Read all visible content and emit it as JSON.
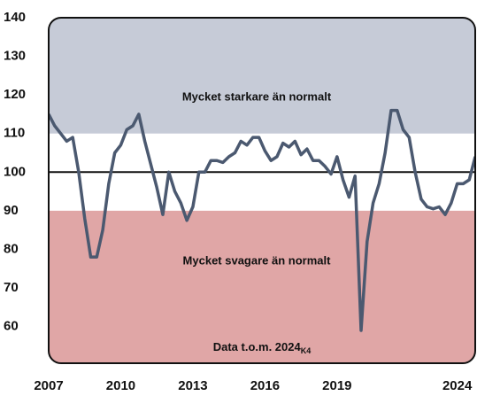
{
  "chart_data": {
    "type": "line",
    "x": [
      2007,
      2007.25,
      2007.5,
      2007.75,
      2008,
      2008.25,
      2008.5,
      2008.75,
      2009,
      2009.25,
      2009.5,
      2009.75,
      2010,
      2010.25,
      2010.5,
      2010.75,
      2011,
      2011.25,
      2011.5,
      2011.75,
      2012,
      2012.25,
      2012.5,
      2012.75,
      2013,
      2013.25,
      2013.5,
      2013.75,
      2014,
      2014.25,
      2014.5,
      2014.75,
      2015,
      2015.25,
      2015.5,
      2015.75,
      2016,
      2016.25,
      2016.5,
      2016.75,
      2017,
      2017.25,
      2017.5,
      2017.75,
      2018,
      2018.25,
      2018.5,
      2018.75,
      2019,
      2019.25,
      2019.5,
      2019.75,
      2020,
      2020.25,
      2020.5,
      2020.75,
      2021,
      2021.25,
      2021.5,
      2021.75,
      2022,
      2022.25,
      2022.5,
      2022.75,
      2023,
      2023.25,
      2023.5,
      2023.75,
      2024,
      2024.25,
      2024.5,
      2024.75
    ],
    "series": [
      {
        "color": "#4b5970",
        "values": [
          115,
          112,
          110,
          108,
          109,
          100,
          88,
          78,
          78,
          85,
          97,
          105,
          107,
          111,
          112,
          115,
          108,
          102,
          96,
          89,
          100,
          95,
          92,
          87.5,
          91,
          100,
          100,
          103,
          103,
          102.5,
          104,
          105,
          108,
          107,
          109,
          109,
          105.5,
          103,
          104,
          107.5,
          106.5,
          108,
          104.5,
          106,
          103,
          103,
          101.5,
          99.5,
          104,
          98,
          93.5,
          99,
          59,
          82,
          92,
          97,
          105,
          116,
          116,
          111,
          109,
          100,
          93,
          91,
          90.5,
          91,
          89,
          92,
          97,
          97,
          98,
          104
        ]
      }
    ],
    "xlim": [
      2007,
      2024.75
    ],
    "xticks": [
      2007,
      2010,
      2013,
      2016,
      2019,
      2024
    ],
    "ylim": [
      50.5,
      140
    ],
    "yticks": [
      60,
      70,
      80,
      90,
      100,
      110,
      120,
      130,
      140
    ],
    "upper_band": {
      "from": 110,
      "color": "#c6cbd7",
      "label": "Mycket starkare än normalt"
    },
    "lower_band": {
      "to": 90,
      "color": "#e0a6a6",
      "label": "Mycket svagare än normalt"
    },
    "reference_line": 100,
    "note": "Data t.o.m. 2024",
    "note_subscript": "K4"
  }
}
